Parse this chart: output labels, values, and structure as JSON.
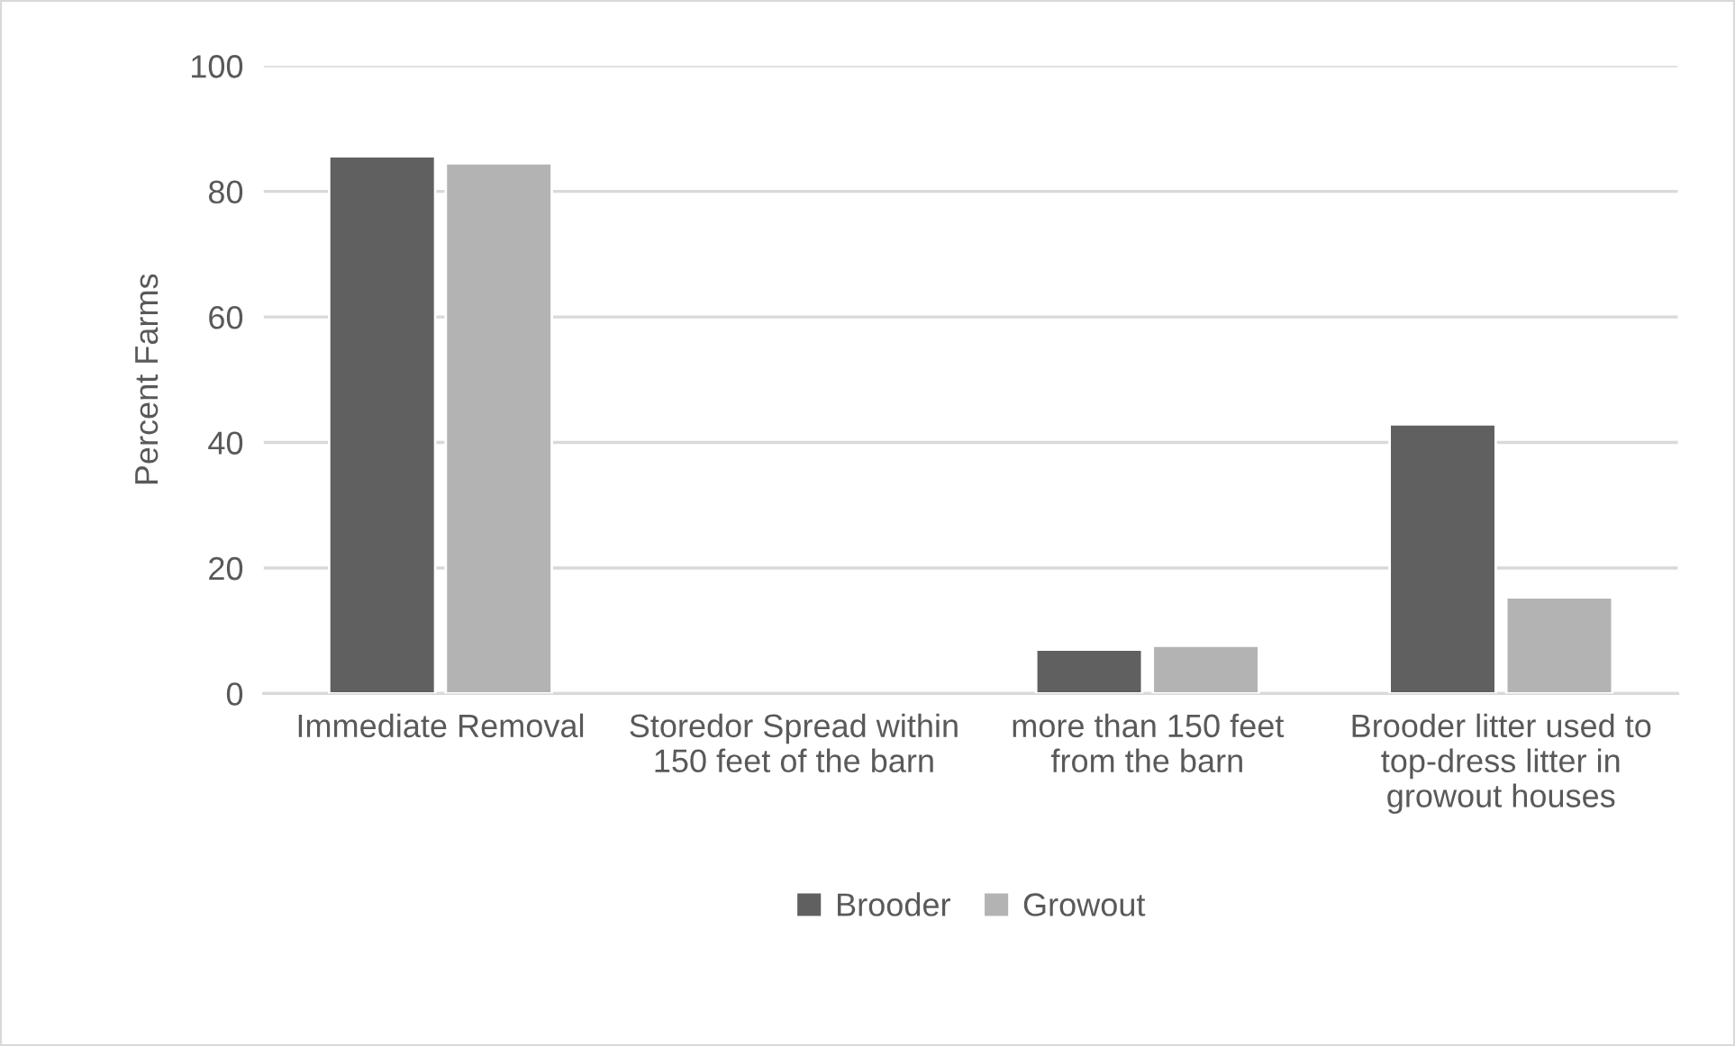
{
  "chart_data": {
    "type": "bar",
    "ylabel": "Percent Farms",
    "categories": [
      "Immediate Removal",
      "Storedor Spread within 150 feet of the barn",
      "more than 150 feet from the barn",
      "Brooder litter used to top-dress litter in growout houses"
    ],
    "series": [
      {
        "name": "Brooder",
        "color": "#606060",
        "values": [
          85.6,
          null,
          7.0,
          42.9
        ]
      },
      {
        "name": "Growout",
        "color": "#b3b3b3",
        "values": [
          84.5,
          null,
          7.6,
          15.3
        ]
      }
    ],
    "ylim": [
      0,
      100
    ],
    "yticks": [
      0,
      20,
      40,
      60,
      80,
      100
    ],
    "grid": "y",
    "legend": "bottom"
  }
}
